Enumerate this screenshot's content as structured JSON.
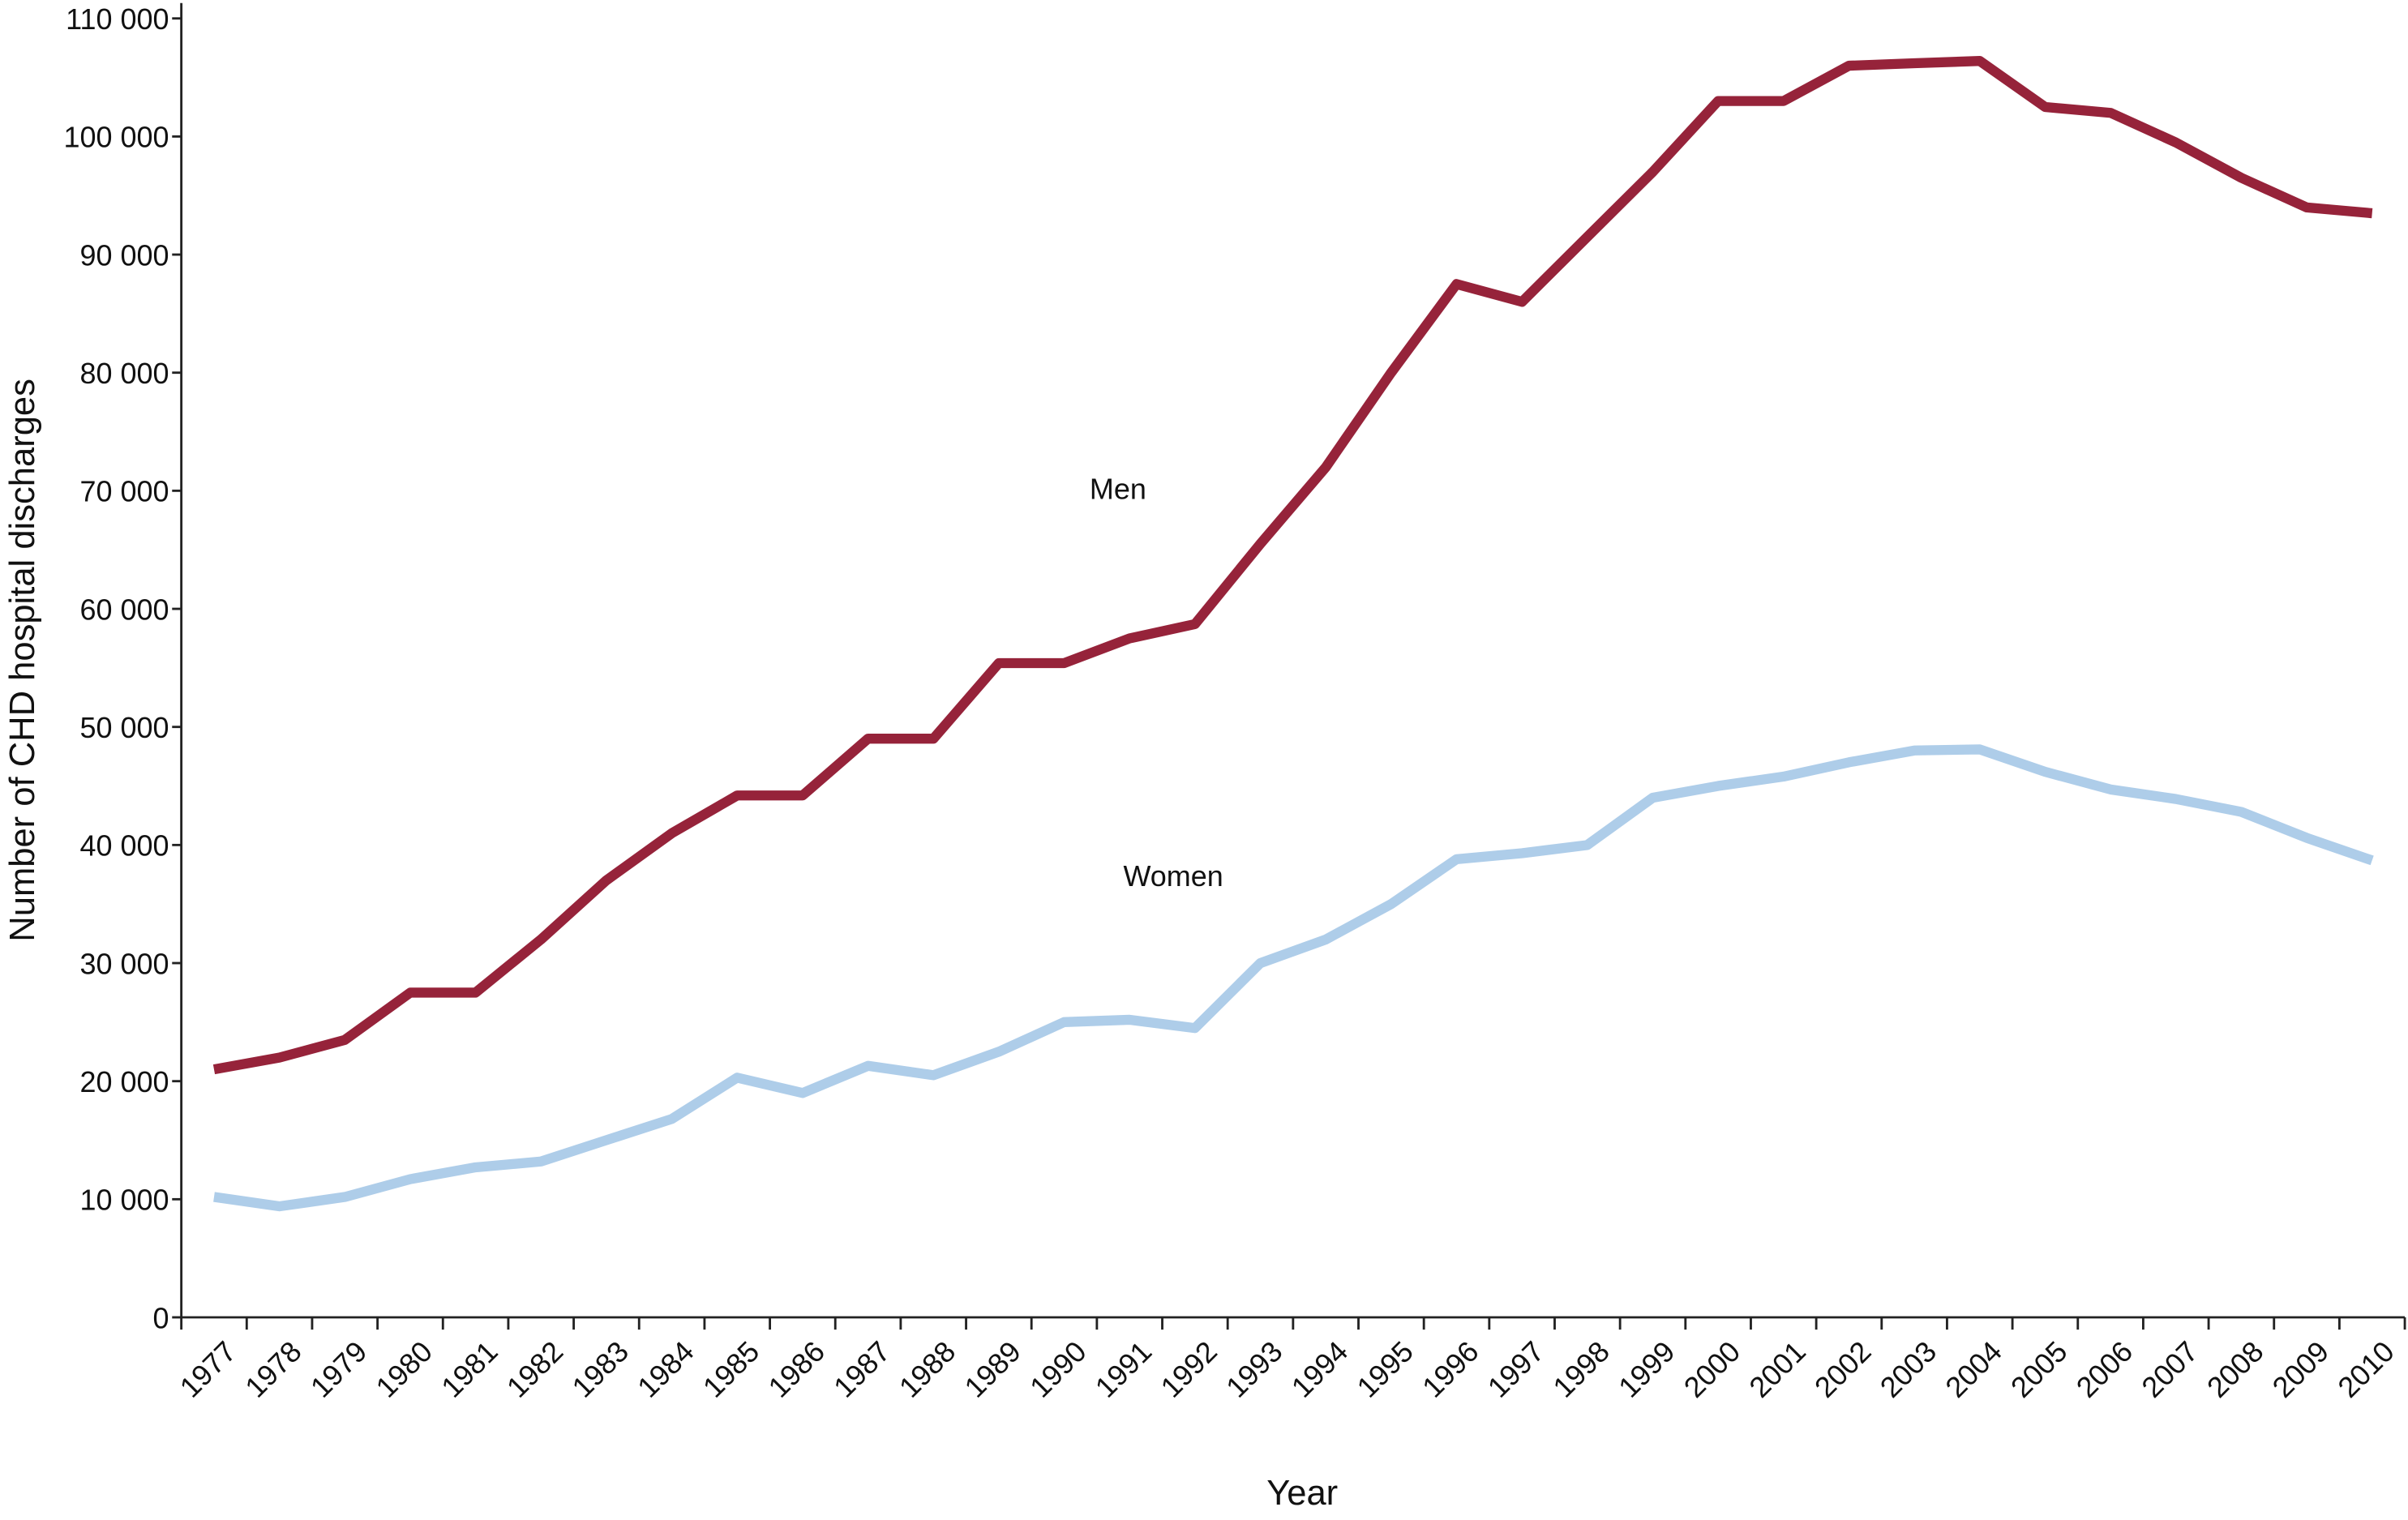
{
  "chart_data": {
    "type": "line",
    "x_label": "Year",
    "y_label": "Number of CHD hospital discharges",
    "categories": [
      "1977",
      "1978",
      "1979",
      "1980",
      "1981",
      "1982",
      "1983",
      "1984",
      "1985",
      "1986",
      "1987",
      "1988",
      "1989",
      "1990",
      "1991",
      "1992",
      "1993",
      "1994",
      "1995",
      "1996",
      "1997",
      "1998",
      "1999",
      "2000",
      "2001",
      "2002",
      "2003",
      "2004",
      "2005",
      "2006",
      "2007",
      "2008",
      "2009",
      "2010"
    ],
    "series": [
      {
        "name": "Men",
        "color": "#96233a",
        "values": [
          21000,
          22000,
          23500,
          27500,
          27500,
          32000,
          37000,
          41000,
          44200,
          44200,
          49000,
          49000,
          55400,
          55400,
          57500,
          58700,
          65500,
          72000,
          80000,
          87500,
          86000,
          91500,
          97000,
          103000,
          103000,
          106000,
          106200,
          106400,
          102500,
          102000,
          99500,
          96500,
          94000,
          93500
        ]
      },
      {
        "name": "Women",
        "color": "#aecde9",
        "values": [
          10200,
          9400,
          10200,
          11700,
          12700,
          13200,
          15000,
          16800,
          20300,
          19000,
          21300,
          20500,
          22500,
          25000,
          25200,
          24500,
          30000,
          32000,
          35000,
          38800,
          39300,
          40000,
          44000,
          45000,
          45800,
          47000,
          48000,
          48100,
          46200,
          44700,
          43900,
          42800,
          40600,
          38700
        ]
      }
    ],
    "ylim": [
      0,
      110000
    ],
    "yticks": [
      0,
      {
        "value": 10000,
        "label": "10 000"
      },
      {
        "value": 20000,
        "label": "20 000"
      },
      {
        "value": 30000,
        "label": "30 000"
      },
      {
        "value": 40000,
        "label": "40 000"
      },
      {
        "value": 50000,
        "label": "50 000"
      },
      {
        "value": 60000,
        "label": "60 000"
      },
      {
        "value": 70000,
        "label": "70 000"
      },
      {
        "value": 80000,
        "label": "80 000"
      },
      {
        "value": 90000,
        "label": "90 000"
      },
      {
        "value": 100000,
        "label": "100 000"
      },
      {
        "value": 110000,
        "label": "110 000"
      }
    ],
    "grid": false
  }
}
